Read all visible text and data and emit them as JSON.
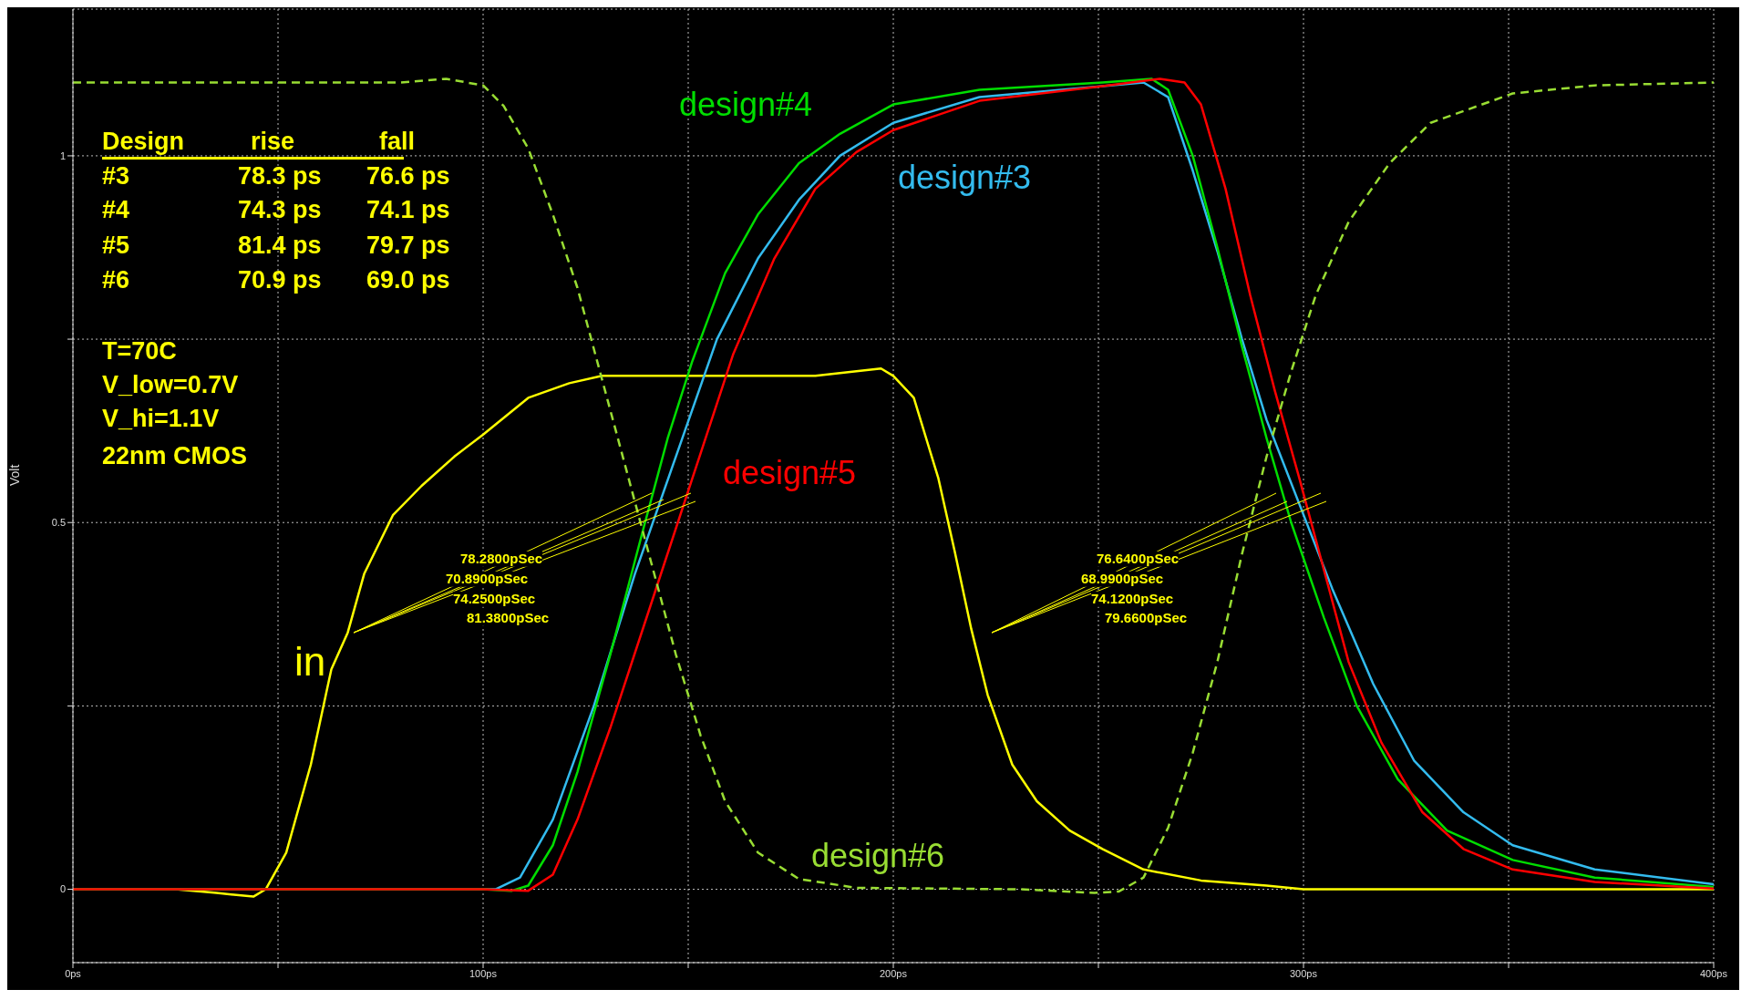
{
  "chart_data": {
    "type": "line",
    "ylabel": "Volt",
    "xlim": [
      0,
      400
    ],
    "xticks": [
      {
        "value": 0,
        "label": "0ps"
      },
      {
        "value": 50,
        "label": null
      },
      {
        "value": 100,
        "label": "100ps"
      },
      {
        "value": 150,
        "label": null
      },
      {
        "value": 200,
        "label": "200ps"
      },
      {
        "value": 250,
        "label": null
      },
      {
        "value": 300,
        "label": "300ps"
      },
      {
        "value": 350,
        "label": null
      },
      {
        "value": 400,
        "label": "400ps"
      }
    ],
    "ylim": [
      -0.1,
      1.2
    ],
    "yticks": [
      0,
      {
        "value": 0.25,
        "label": null
      },
      0.5,
      {
        "value": 0.75,
        "label": null
      },
      1
    ],
    "grid": true,
    "series": [
      {
        "name": "in",
        "color": "#ffff00",
        "line_style": "solid",
        "x": [
          0,
          25,
          35,
          44,
          47,
          52,
          58,
          63,
          67,
          71,
          78,
          85,
          93,
          100,
          111,
          121,
          129,
          151,
          181,
          197,
          200,
          205,
          211,
          215,
          219,
          223,
          229,
          235,
          243,
          251,
          261,
          275,
          291,
          300,
          400
        ],
        "values": [
          0,
          0,
          -0.005,
          -0.01,
          0,
          0.05,
          0.17,
          0.3,
          0.35,
          0.43,
          0.51,
          0.55,
          0.59,
          0.62,
          0.67,
          0.69,
          0.7,
          0.7,
          0.7,
          0.71,
          0.7,
          0.67,
          0.56,
          0.46,
          0.355,
          0.265,
          0.17,
          0.12,
          0.08,
          0.055,
          0.027,
          0.012,
          0.005,
          0,
          0
        ]
      },
      {
        "name": "design#3",
        "color": "#33bbee",
        "line_style": "solid",
        "x": [
          0,
          100,
          103,
          109,
          117,
          127,
          137,
          147,
          157,
          167,
          177,
          187,
          200,
          221,
          251,
          261,
          267,
          273,
          279,
          285,
          291,
          299,
          307,
          317,
          327,
          339,
          351,
          371,
          400
        ],
        "values": [
          0,
          0,
          0,
          0.016,
          0.095,
          0.25,
          0.43,
          0.59,
          0.75,
          0.86,
          0.94,
          1.0,
          1.045,
          1.08,
          1.095,
          1.1,
          1.08,
          0.98,
          0.87,
          0.75,
          0.64,
          0.525,
          0.41,
          0.28,
          0.175,
          0.105,
          0.06,
          0.027,
          0.007
        ]
      },
      {
        "name": "design#4",
        "color": "#00dd00",
        "line_style": "solid",
        "x": [
          0,
          100,
          107,
          111,
          117,
          123,
          131,
          139,
          145,
          151,
          159,
          167,
          177,
          187,
          200,
          221,
          251,
          263,
          267,
          273,
          279,
          285,
          291,
          297,
          305,
          313,
          323,
          335,
          351,
          371,
          400
        ],
        "values": [
          0,
          0,
          -0.002,
          0.005,
          0.06,
          0.16,
          0.32,
          0.49,
          0.615,
          0.72,
          0.84,
          0.92,
          0.99,
          1.03,
          1.07,
          1.09,
          1.1,
          1.105,
          1.09,
          1.0,
          0.875,
          0.74,
          0.615,
          0.5,
          0.37,
          0.25,
          0.15,
          0.08,
          0.04,
          0.016,
          0.003
        ]
      },
      {
        "name": "design#5",
        "color": "#ff0000",
        "line_style": "solid",
        "x": [
          0,
          100,
          111,
          117,
          123,
          131,
          141,
          151,
          161,
          171,
          181,
          191,
          200,
          221,
          251,
          265,
          271,
          275,
          281,
          287,
          293,
          299,
          305,
          311,
          319,
          329,
          339,
          351,
          371,
          400
        ],
        "values": [
          0,
          0,
          -0.002,
          0.02,
          0.095,
          0.22,
          0.39,
          0.56,
          0.73,
          0.86,
          0.955,
          1.005,
          1.035,
          1.075,
          1.095,
          1.105,
          1.1,
          1.07,
          0.955,
          0.81,
          0.68,
          0.56,
          0.435,
          0.31,
          0.2,
          0.105,
          0.055,
          0.027,
          0.01,
          0.001
        ]
      },
      {
        "name": "design#6",
        "color": "#99dd33",
        "line_style": "dashed",
        "x": [
          0,
          80,
          91,
          100,
          105,
          111,
          117,
          123,
          129,
          135,
          141,
          147,
          153,
          159,
          167,
          177,
          191,
          231,
          249,
          255,
          261,
          267,
          273,
          279,
          285,
          291,
          297,
          303,
          311,
          321,
          331,
          351,
          371,
          400
        ],
        "values": [
          1.1,
          1.1,
          1.105,
          1.096,
          1.068,
          1.01,
          0.92,
          0.82,
          0.695,
          0.57,
          0.445,
          0.32,
          0.21,
          0.12,
          0.05,
          0.014,
          0.002,
          0,
          -0.005,
          -0.003,
          0.016,
          0.084,
          0.186,
          0.31,
          0.457,
          0.59,
          0.706,
          0.81,
          0.91,
          0.99,
          1.045,
          1.085,
          1.096,
          1.1
        ]
      }
    ],
    "annotations": [
      "Design",
      "rise",
      "fall",
      "#3",
      "78.3 ps",
      "76.6 ps",
      "#4",
      "74.3 ps",
      "74.1 ps",
      "#5",
      "81.4 ps",
      "79.7 ps",
      "#6",
      "70.9 ps",
      "69.0 ps",
      "T=70C",
      "V_low=0.7V",
      "V_hi=1.1V",
      "22nm CMOS",
      "78.2800pSec",
      "70.8900pSec",
      "74.2500pSec",
      "81.3800pSec",
      "76.6400pSec",
      "68.9900pSec",
      "74.1200pSec",
      "79.6600pSec"
    ]
  }
}
